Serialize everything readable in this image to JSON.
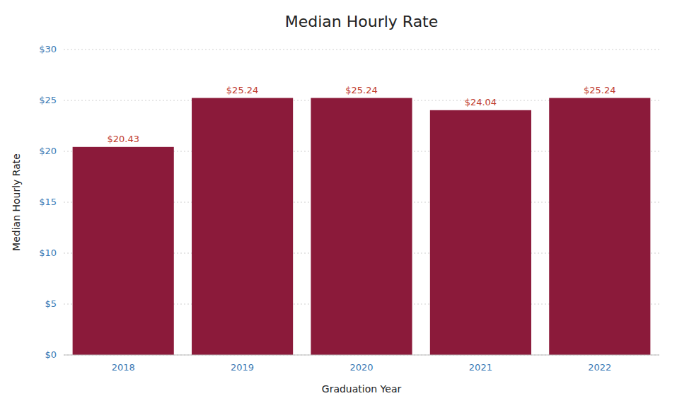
{
  "chart_data": {
    "type": "bar",
    "title": "Median Hourly Rate",
    "xlabel": "Graduation Year",
    "ylabel": "Median Hourly Rate",
    "categories": [
      "2018",
      "2019",
      "2020",
      "2021",
      "2022"
    ],
    "values": [
      20.43,
      25.24,
      25.24,
      24.04,
      25.24
    ],
    "value_labels": [
      "$20.43",
      "$25.24",
      "$25.24",
      "$24.04",
      "$25.24"
    ],
    "data_labels": true,
    "color": "#8B1A3A",
    "ylim": [
      0,
      30
    ],
    "yticks": [
      {
        "value": 0,
        "label": "$0"
      },
      {
        "value": 5,
        "label": "$5"
      },
      {
        "value": 10,
        "label": "$10"
      },
      {
        "value": 15,
        "label": "$15"
      },
      {
        "value": 20,
        "label": "$20"
      },
      {
        "value": 25,
        "label": "$25"
      },
      {
        "value": 30,
        "label": "$30"
      }
    ],
    "grid": true
  }
}
